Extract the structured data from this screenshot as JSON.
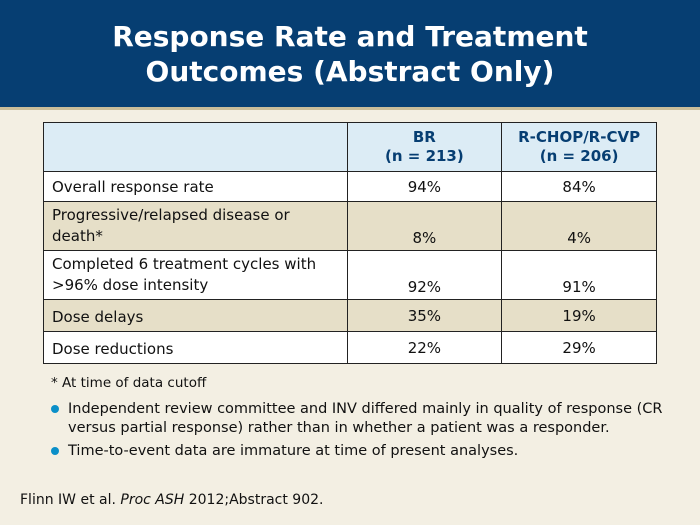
{
  "title": "Response Rate and Treatment Outcomes (Abstract Only)",
  "table": {
    "headers": [
      {
        "line1": "BR",
        "line2": "(n = 213)"
      },
      {
        "line1": "R-CHOP/R-CVP",
        "line2": "(n = 206)"
      }
    ],
    "rows": [
      {
        "label": "Overall response rate",
        "br": "94%",
        "rchop": "84%"
      },
      {
        "label": "Progressive/relapsed disease or death*",
        "br": "8%",
        "rchop": "4%"
      },
      {
        "label": "Completed 6 treatment cycles with >96% dose intensity",
        "br": "92%",
        "rchop": "91%"
      },
      {
        "label": "Dose delays",
        "br": "35%",
        "rchop": "19%"
      },
      {
        "label": "Dose reductions",
        "br": "22%",
        "rchop": "29%"
      }
    ]
  },
  "footnote": "* At time of data cutoff",
  "bullets": [
    "Independent review committee and INV differed mainly in quality of response (CR versus partial response) rather than in whether a patient was a responder.",
    "Time-to-event data are immature at time of present analyses."
  ],
  "citation": {
    "authors": "Flinn IW et al.",
    "journal": "Proc ASH",
    "details": "2012;Abstract 902."
  },
  "colors": {
    "header_bg": "#063e72",
    "page_bg": "#f3efe3",
    "table_header_bg": "#dcecf5",
    "row_tan": "#e6dfc8",
    "bullet": "#0a8fc8"
  }
}
